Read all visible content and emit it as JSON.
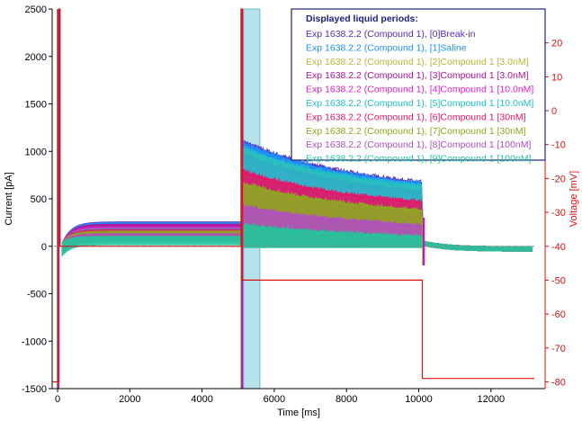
{
  "chart_data": {
    "type": "line",
    "xlabel": "Time [ms]",
    "ylabel_left": "Current [pA]",
    "ylabel_right": "Voltage [mV]",
    "xlim": [
      -150,
      13500
    ],
    "ylim_left": [
      -1500,
      2500
    ],
    "ylim_right": [
      -82,
      30
    ],
    "x_ticks": [
      0,
      2000,
      4000,
      6000,
      8000,
      10000,
      12000
    ],
    "y_ticks_left": [
      -1500,
      -1000,
      -500,
      0,
      500,
      1000,
      1500,
      2000,
      2500
    ],
    "y_ticks_right": [
      -80,
      -70,
      -60,
      -50,
      -40,
      -30,
      -20,
      -10,
      0,
      10,
      20
    ],
    "grid": false,
    "legend": {
      "title": "Displayed liquid periods:",
      "placement": "top-right",
      "entries": [
        {
          "label": "Exp 1638.2.2 (Compound 1), [0]Break-in",
          "color": "#5a2ab8"
        },
        {
          "label": "Exp 1638.2.2 (Compound 1), [1]Saline",
          "color": "#1e90ff"
        },
        {
          "label": "Exp 1638.2.2 (Compound 1), [2]Compound 1 [3.0nM]",
          "color": "#b5b83a"
        },
        {
          "label": "Exp 1638.2.2 (Compound 1), [3]Compound 1 [3.0nM]",
          "color": "#b0129e"
        },
        {
          "label": "Exp 1638.2.2 (Compound 1), [4]Compound 1 [10.0nM]",
          "color": "#e020d0"
        },
        {
          "label": "Exp 1638.2.2 (Compound 1), [5]Compound 1 [10.0nM]",
          "color": "#20c0c8"
        },
        {
          "label": "Exp 1638.2.2 (Compound 1), [6]Compound 1 [30nM]",
          "color": "#e81466"
        },
        {
          "label": "Exp 1638.2.2 (Compound 1), [7]Compound 1 [30nM]",
          "color": "#8ea822"
        },
        {
          "label": "Exp 1638.2.2 (Compound 1), [8]Compound 1 [100nM]",
          "color": "#b050c0"
        },
        {
          "label": "Exp 1638.2.2 (Compound 1), [9]Compound 1 [100nM]",
          "color": "#20c89a"
        }
      ]
    },
    "shaded_region": {
      "x": [
        5150,
        5600
      ],
      "color": "#a8dde8"
    },
    "voltage_protocol": {
      "color": "#e01010",
      "points": [
        [
          -150,
          -80
        ],
        [
          40,
          -80
        ],
        [
          40,
          30
        ],
        [
          70,
          30
        ],
        [
          70,
          -40
        ],
        [
          5080,
          -40
        ],
        [
          5080,
          30
        ],
        [
          5110,
          30
        ],
        [
          5110,
          -50
        ],
        [
          10100,
          -50
        ],
        [
          10100,
          -79
        ],
        [
          13200,
          -79
        ]
      ]
    },
    "current_series": [
      {
        "name": "[0]Break-in",
        "color": "#5a2ab8",
        "baseline": 230,
        "peak": 1080,
        "end": 560
      },
      {
        "name": "[1]Saline",
        "color": "#1e90ff",
        "baseline": 220,
        "peak": 1060,
        "end": 550
      },
      {
        "name": "[2]Compound 1 [3.0nM]",
        "color": "#b5b83a",
        "baseline": 190,
        "peak": 980,
        "end": 500
      },
      {
        "name": "[3]Compound 1 [3.0nM]",
        "color": "#b0129e",
        "baseline": 200,
        "peak": 940,
        "end": 470
      },
      {
        "name": "[4]Compound 1 [10.0nM]",
        "color": "#e020d0",
        "baseline": 170,
        "peak": 860,
        "end": 420
      },
      {
        "name": "[5]Compound 1 [10.0nM]",
        "color": "#20c0c8",
        "baseline": 150,
        "peak": 1000,
        "end": 530
      },
      {
        "name": "[6]Compound 1 [30nM]",
        "color": "#e81466",
        "baseline": 140,
        "peak": 750,
        "end": 380
      },
      {
        "name": "[7]Compound 1 [30nM]",
        "color": "#8ea822",
        "baseline": 120,
        "peak": 620,
        "end": 300
      },
      {
        "name": "[8]Compound 1 [100nM]",
        "color": "#b050c0",
        "baseline": 90,
        "peak": 380,
        "end": 160
      },
      {
        "name": "[9]Compound 1 [100nM]",
        "color": "#20c89a",
        "baseline": 60,
        "peak": 180,
        "end": 60
      }
    ]
  }
}
